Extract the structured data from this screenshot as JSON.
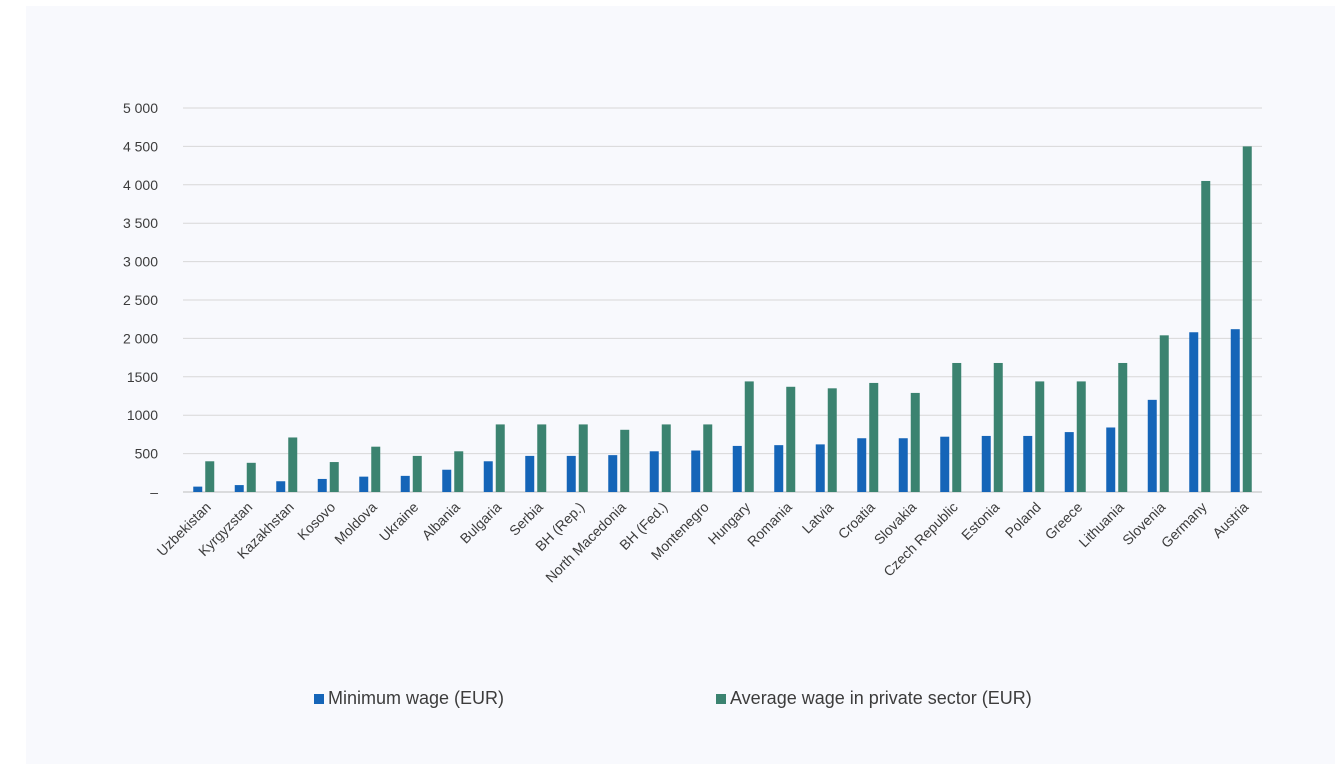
{
  "colors": {
    "min_wage": "#1565b8",
    "avg_wage": "#3b8370"
  },
  "chart_data": {
    "type": "bar",
    "categories": [
      "Uzbekistan",
      "Kyrgyzstan",
      "Kazakhstan",
      "Kosovo",
      "Moldova",
      "Ukraine",
      "Albania",
      "Bulgaria",
      "Serbia",
      "BH (Rep.)",
      "North Macedonia",
      "BH (Fed.)",
      "Montenegro",
      "Hungary",
      "Romania",
      "Latvia",
      "Croatia",
      "Slovakia",
      "Czech Republic",
      "Estonia",
      "Poland",
      "Greece",
      "Lithuania",
      "Slovenia",
      "Germany",
      "Austria"
    ],
    "series": [
      {
        "name": "Minimum wage (EUR)",
        "values": [
          70,
          90,
          140,
          170,
          200,
          210,
          290,
          400,
          470,
          470,
          480,
          530,
          540,
          600,
          610,
          620,
          700,
          700,
          720,
          730,
          730,
          780,
          840,
          1200,
          2080,
          2120
        ]
      },
      {
        "name": "Average wage in private sector (EUR)",
        "values": [
          400,
          380,
          710,
          390,
          590,
          470,
          530,
          880,
          880,
          880,
          810,
          880,
          880,
          1440,
          1370,
          1350,
          1420,
          1290,
          1680,
          1680,
          1440,
          1440,
          1680,
          2040,
          4050,
          4500
        ]
      }
    ],
    "ylim": [
      0,
      5000
    ],
    "yticks": [
      0,
      500,
      1000,
      1500,
      2000,
      2500,
      3000,
      3500,
      4000,
      4500,
      5000
    ],
    "ytick_labels": [
      "–",
      "500",
      "1000",
      "1500",
      "2 000",
      "2 500",
      "3 000",
      "3 500",
      "4 000",
      "4 500",
      "5 000"
    ],
    "grid": true,
    "legend": "bottom",
    "xlabel": "",
    "ylabel": ""
  }
}
